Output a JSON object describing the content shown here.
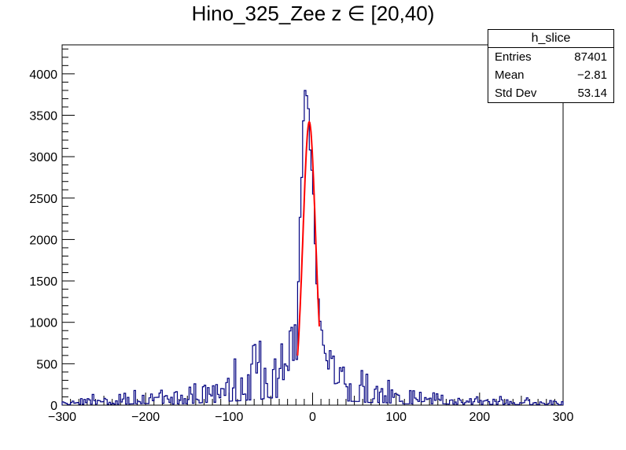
{
  "chart_data": {
    "type": "histogram",
    "title": "Hino_325_Zee z  ∈ [20,40)",
    "xlim": [
      -300,
      300
    ],
    "ylim": [
      0,
      4350
    ],
    "x_ticks": [
      -300,
      -200,
      -100,
      0,
      100,
      200,
      300
    ],
    "y_ticks": [
      0,
      500,
      1000,
      1500,
      2000,
      2500,
      3000,
      3500,
      4000
    ],
    "grid": false,
    "colors": {
      "histogram": "#000080",
      "fit": "#ff0000"
    },
    "stats": {
      "name": "h_slice",
      "rows": [
        {
          "label": "Entries",
          "value": "87401"
        },
        {
          "label": "Mean",
          "value": "−2.81"
        },
        {
          "label": "Std Dev",
          "value": "53.14"
        }
      ]
    },
    "histogram": {
      "bin_width": 2,
      "x": [
        -300,
        -280,
        -260,
        -240,
        -220,
        -200,
        -190,
        -180,
        -170,
        -160,
        -150,
        -140,
        -130,
        -120,
        -110,
        -100,
        -90,
        -80,
        -70,
        -60,
        -54,
        -50,
        -44,
        -40,
        -36,
        -32,
        -28,
        -24,
        -20,
        -18,
        -16,
        -14,
        -12,
        -10,
        -8,
        -6,
        -4,
        -2,
        0,
        2,
        4,
        6,
        8,
        10,
        12,
        14,
        16,
        18,
        20,
        24,
        28,
        32,
        36,
        40,
        44,
        50,
        56,
        60,
        70,
        80,
        90,
        100,
        110,
        120,
        130,
        140,
        148,
        160,
        170,
        180,
        190,
        200,
        220,
        240,
        260,
        280,
        298
      ],
      "y": [
        40,
        50,
        60,
        50,
        70,
        100,
        90,
        120,
        60,
        80,
        90,
        120,
        160,
        180,
        150,
        240,
        260,
        300,
        330,
        360,
        500,
        420,
        480,
        430,
        560,
        480,
        640,
        820,
        760,
        1200,
        1800,
        2600,
        3200,
        3750,
        4050,
        3900,
        3300,
        2700,
        3100,
        2300,
        1600,
        1350,
        1200,
        950,
        800,
        660,
        560,
        480,
        440,
        420,
        350,
        300,
        350,
        260,
        240,
        230,
        220,
        180,
        160,
        160,
        140,
        100,
        80,
        80,
        70,
        60,
        120,
        70,
        60,
        50,
        60,
        40,
        50,
        40,
        40,
        40,
        30
      ]
    },
    "fit": {
      "type": "gaussian",
      "x_range": [
        -18,
        8
      ],
      "peak": 3420,
      "mean": -4,
      "sigma": 7.5
    }
  }
}
